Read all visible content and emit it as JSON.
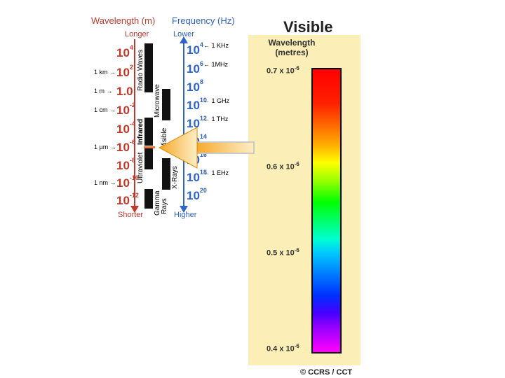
{
  "headers": {
    "wavelength": "Wavelength (m)",
    "frequency": "Frequency (Hz)",
    "longer": "Longer",
    "shorter": "Shorter",
    "lower": "Lower",
    "higher": "Higher"
  },
  "wavelength_scale": [
    {
      "base": "10",
      "exp": "4",
      "ref": ""
    },
    {
      "base": "10",
      "exp": "2",
      "ref": "1 km"
    },
    {
      "base": "1.0",
      "exp": "",
      "ref": "1 m"
    },
    {
      "base": "10",
      "exp": "-2",
      "ref": "1 cm"
    },
    {
      "base": "10",
      "exp": "-4",
      "ref": ""
    },
    {
      "base": "10",
      "exp": "-6",
      "ref": "1 µm"
    },
    {
      "base": "10",
      "exp": "-8",
      "ref": ""
    },
    {
      "base": "10",
      "exp": "-10",
      "ref": "1 nm"
    },
    {
      "base": "10",
      "exp": "-12",
      "ref": ""
    }
  ],
  "frequency_scale": [
    {
      "base": "10",
      "exp": "4",
      "ref": "1 KHz"
    },
    {
      "base": "10",
      "exp": "6",
      "ref": "1MHz"
    },
    {
      "base": "10",
      "exp": "8",
      "ref": ""
    },
    {
      "base": "10",
      "exp": "10",
      "ref": "1 GHz"
    },
    {
      "base": "10",
      "exp": "12",
      "ref": "1 THz"
    },
    {
      "base": "10",
      "exp": "14",
      "ref": ""
    },
    {
      "base": "10",
      "exp": "16",
      "ref": ""
    },
    {
      "base": "10",
      "exp": "18",
      "ref": "1 EHz"
    },
    {
      "base": "10",
      "exp": "20",
      "ref": ""
    }
  ],
  "bands": {
    "radio": "Radio Waves",
    "microwave": "Microwave",
    "infrared": "Infrared",
    "ultraviolet": "Ultraviolet",
    "visible": "Visible",
    "xrays": "X-Rays",
    "gamma1": "Gamma",
    "gamma2": "Rays"
  },
  "visible_panel": {
    "title": "Visible",
    "sub1": "Wavelength",
    "sub2": "(metres)",
    "ticks": [
      {
        "mant": "0.7 x 10",
        "exp": "-6"
      },
      {
        "mant": "0.6 x 10",
        "exp": "-6"
      },
      {
        "mant": "0.5 x 10",
        "exp": "-6"
      },
      {
        "mant": "0.4 x 10",
        "exp": "-6"
      }
    ]
  },
  "copyright": "© CCRS / CCT",
  "colors": {
    "wavelength": "#c0392b",
    "frequency": "#2e63c7",
    "panel": "#fbeeb6"
  }
}
